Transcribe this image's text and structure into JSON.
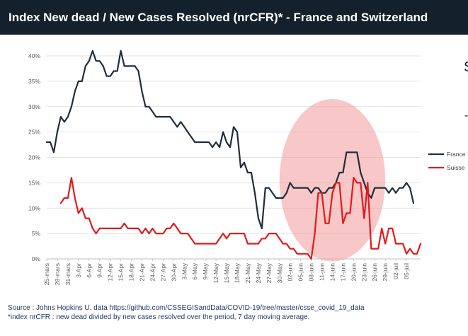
{
  "header": {
    "title": "Index New dead / New Cases Resolved (nrCFR)* - France and Switzerland"
  },
  "colors": {
    "title_bg": "#14202c",
    "france": "#1f2d3d",
    "suisse": "#e21b1b",
    "highlight": "#f4a4a4",
    "grid": "#d9d9d9"
  },
  "stray_text": {
    "line1": "S",
    "line2": "-"
  },
  "footer": {
    "source": "Source : Johns Hopkins U. data https://github.com/CSSEGISandData/COVID-19/tree/master/csse_covid_19_data",
    "note": "*index nrCFR : new dead divided by new cases resolved over the period, 7 day moving average."
  },
  "chart_data": {
    "type": "line",
    "title": "Index New dead / New Cases Resolved (nrCFR)* - France and Switzerland",
    "xlabel": "",
    "ylabel": "",
    "ylim": [
      0,
      40
    ],
    "y_ticks": [
      "0%",
      "5%",
      "10%",
      "15%",
      "20%",
      "25%",
      "30%",
      "35%",
      "40%"
    ],
    "grid": true,
    "legend_position": "right",
    "x_ticks": [
      "25-mars",
      "28-mars",
      "31-mars",
      "3-Apr",
      "6-Apr",
      "9-Apr",
      "12-Apr",
      "15-Apr",
      "18-Apr",
      "21-Apr",
      "24-Apr",
      "27-Apr",
      "30-Apr",
      "3-May",
      "6-May",
      "9-May",
      "12-May",
      "15-May",
      "18-May",
      "21-May",
      "24-May",
      "27-May",
      "30-May",
      "02-juin",
      "05-juin",
      "08-juin",
      "11-juin",
      "14-juin",
      "17-juin",
      "20-juin",
      "23-juin",
      "26-juin",
      "29-juin",
      "02-juil",
      "05-juil"
    ],
    "x_start_day": 0,
    "x_end_day": 106,
    "highlight": {
      "center_day": 81,
      "center_pct": 15.5,
      "radius_days": 15,
      "radius_pct": 16
    },
    "series": [
      {
        "name": "France",
        "points": [
          [
            0,
            23
          ],
          [
            1,
            23
          ],
          [
            2,
            21
          ],
          [
            3,
            25
          ],
          [
            4,
            28
          ],
          [
            5,
            27
          ],
          [
            6,
            28
          ],
          [
            7,
            30
          ],
          [
            8,
            33
          ],
          [
            9,
            35
          ],
          [
            10,
            35
          ],
          [
            11,
            38
          ],
          [
            12,
            39
          ],
          [
            13,
            41
          ],
          [
            14,
            39
          ],
          [
            15,
            39
          ],
          [
            16,
            38
          ],
          [
            17,
            36
          ],
          [
            18,
            36
          ],
          [
            19,
            37
          ],
          [
            20,
            37
          ],
          [
            21,
            41
          ],
          [
            22,
            38
          ],
          [
            23,
            38
          ],
          [
            24,
            38
          ],
          [
            25,
            38
          ],
          [
            26,
            37
          ],
          [
            27,
            33
          ],
          [
            28,
            30
          ],
          [
            29,
            30
          ],
          [
            30,
            29
          ],
          [
            31,
            28
          ],
          [
            32,
            28
          ],
          [
            33,
            28
          ],
          [
            34,
            28
          ],
          [
            35,
            28
          ],
          [
            36,
            27
          ],
          [
            37,
            26
          ],
          [
            38,
            27
          ],
          [
            39,
            26
          ],
          [
            40,
            25
          ],
          [
            41,
            24
          ],
          [
            42,
            23
          ],
          [
            43,
            23
          ],
          [
            44,
            23
          ],
          [
            45,
            23
          ],
          [
            46,
            23
          ],
          [
            47,
            22
          ],
          [
            48,
            23
          ],
          [
            49,
            22
          ],
          [
            50,
            25
          ],
          [
            51,
            23
          ],
          [
            52,
            22
          ],
          [
            53,
            26
          ],
          [
            54,
            25
          ],
          [
            55,
            18
          ],
          [
            56,
            19
          ],
          [
            57,
            17
          ],
          [
            58,
            17
          ],
          [
            59,
            13
          ],
          [
            60,
            8
          ],
          [
            61,
            6
          ],
          [
            62,
            14
          ],
          [
            63,
            14
          ],
          [
            64,
            13
          ],
          [
            65,
            12
          ],
          [
            66,
            12
          ],
          [
            67,
            12
          ],
          [
            68,
            13
          ],
          [
            69,
            15
          ],
          [
            70,
            14
          ],
          [
            71,
            14
          ],
          [
            72,
            14
          ],
          [
            73,
            14
          ],
          [
            74,
            14
          ],
          [
            75,
            13
          ],
          [
            76,
            14
          ],
          [
            77,
            14
          ],
          [
            78,
            13
          ],
          [
            79,
            13
          ],
          [
            80,
            14
          ],
          [
            81,
            14
          ],
          [
            82,
            15
          ],
          [
            83,
            17
          ],
          [
            84,
            17
          ],
          [
            85,
            21
          ],
          [
            86,
            21
          ],
          [
            87,
            21
          ],
          [
            88,
            21
          ],
          [
            89,
            17
          ],
          [
            90,
            15
          ],
          [
            91,
            13
          ],
          [
            92,
            12
          ],
          [
            93,
            14
          ],
          [
            94,
            14
          ],
          [
            95,
            14
          ],
          [
            96,
            14
          ],
          [
            97,
            13
          ],
          [
            98,
            14
          ],
          [
            99,
            13
          ],
          [
            100,
            14
          ],
          [
            101,
            14
          ],
          [
            102,
            15
          ],
          [
            103,
            14
          ],
          [
            104,
            11
          ]
        ]
      },
      {
        "name": "Suisse",
        "points": [
          [
            4,
            11
          ],
          [
            5,
            12
          ],
          [
            6,
            12
          ],
          [
            7,
            16
          ],
          [
            8,
            12
          ],
          [
            9,
            9
          ],
          [
            10,
            10
          ],
          [
            11,
            8
          ],
          [
            12,
            8
          ],
          [
            13,
            6
          ],
          [
            14,
            5
          ],
          [
            15,
            6
          ],
          [
            16,
            6
          ],
          [
            17,
            6
          ],
          [
            18,
            6
          ],
          [
            19,
            6
          ],
          [
            20,
            6
          ],
          [
            21,
            6
          ],
          [
            22,
            7
          ],
          [
            23,
            6
          ],
          [
            24,
            6
          ],
          [
            25,
            6
          ],
          [
            26,
            6
          ],
          [
            27,
            5
          ],
          [
            28,
            6
          ],
          [
            29,
            5
          ],
          [
            30,
            6
          ],
          [
            31,
            5
          ],
          [
            32,
            5
          ],
          [
            33,
            5
          ],
          [
            34,
            6
          ],
          [
            35,
            6
          ],
          [
            36,
            7
          ],
          [
            37,
            6
          ],
          [
            38,
            5
          ],
          [
            39,
            5
          ],
          [
            40,
            5
          ],
          [
            41,
            4
          ],
          [
            42,
            3
          ],
          [
            43,
            3
          ],
          [
            44,
            3
          ],
          [
            45,
            3
          ],
          [
            46,
            3
          ],
          [
            47,
            3
          ],
          [
            48,
            3
          ],
          [
            49,
            4
          ],
          [
            50,
            5
          ],
          [
            51,
            4
          ],
          [
            52,
            5
          ],
          [
            53,
            5
          ],
          [
            54,
            5
          ],
          [
            55,
            5
          ],
          [
            56,
            5
          ],
          [
            57,
            3
          ],
          [
            58,
            3
          ],
          [
            59,
            3
          ],
          [
            60,
            3
          ],
          [
            61,
            4
          ],
          [
            62,
            4
          ],
          [
            63,
            5
          ],
          [
            64,
            5
          ],
          [
            65,
            5
          ],
          [
            66,
            4
          ],
          [
            67,
            3
          ],
          [
            68,
            3
          ],
          [
            69,
            2
          ],
          [
            70,
            2
          ],
          [
            71,
            1
          ],
          [
            72,
            1
          ],
          [
            73,
            1
          ],
          [
            74,
            1
          ],
          [
            75,
            0
          ],
          [
            76,
            5
          ],
          [
            77,
            13
          ],
          [
            78,
            13
          ],
          [
            79,
            7
          ],
          [
            80,
            7
          ],
          [
            81,
            13
          ],
          [
            82,
            15
          ],
          [
            83,
            15
          ],
          [
            84,
            7
          ],
          [
            85,
            9
          ],
          [
            86,
            9
          ],
          [
            87,
            16
          ],
          [
            88,
            15
          ],
          [
            89,
            15
          ],
          [
            90,
            8
          ],
          [
            91,
            15
          ],
          [
            92,
            2
          ],
          [
            93,
            2
          ],
          [
            94,
            2
          ],
          [
            95,
            6
          ],
          [
            96,
            3
          ],
          [
            97,
            6
          ],
          [
            98,
            6
          ],
          [
            99,
            3
          ],
          [
            100,
            3
          ],
          [
            101,
            3
          ],
          [
            102,
            1
          ],
          [
            103,
            2
          ],
          [
            104,
            1
          ],
          [
            105,
            1
          ],
          [
            106,
            3
          ]
        ]
      }
    ]
  }
}
